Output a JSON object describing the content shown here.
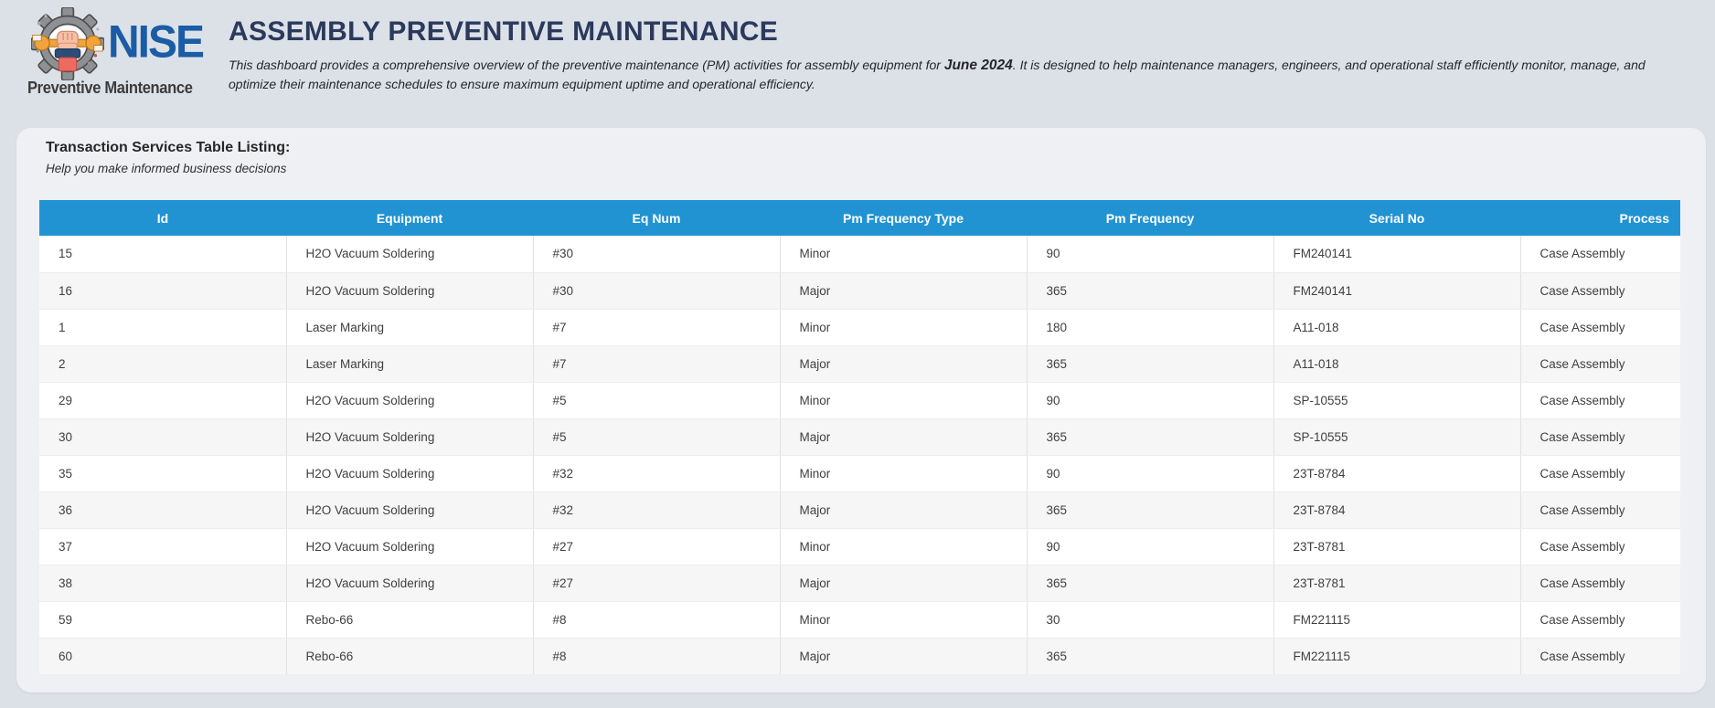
{
  "logo": {
    "name": "NISE",
    "tagline": "Preventive Maintenance"
  },
  "header": {
    "title": "ASSEMBLY PREVENTIVE MAINTENANCE",
    "description_part1": "This dashboard provides a comprehensive overview of the preventive maintenance (PM) activities for assembly equipment for ",
    "description_highlight": "June 2024",
    "description_part2": ". It is designed to help maintenance managers, engineers, and operational staff efficiently monitor, manage, and optimize their maintenance schedules to ensure maximum equipment uptime and operational efficiency."
  },
  "panel": {
    "title": "Transaction Services Table Listing:",
    "subtitle": "Help you make informed business decisions"
  },
  "table": {
    "columns": [
      "Id",
      "Equipment",
      "Eq Num",
      "Pm Frequency Type",
      "Pm Frequency",
      "Serial No",
      "Process"
    ],
    "rows": [
      [
        "15",
        "H2O Vacuum Soldering",
        "#30",
        "Minor",
        "90",
        "FM240141",
        "Case Assembly"
      ],
      [
        "16",
        "H2O Vacuum Soldering",
        "#30",
        "Major",
        "365",
        "FM240141",
        "Case Assembly"
      ],
      [
        "1",
        "Laser Marking",
        "#7",
        "Minor",
        "180",
        "A11-018",
        "Case Assembly"
      ],
      [
        "2",
        "Laser Marking",
        "#7",
        "Major",
        "365",
        "A11-018",
        "Case Assembly"
      ],
      [
        "29",
        "H2O Vacuum Soldering",
        "#5",
        "Minor",
        "90",
        "SP-10555",
        "Case Assembly"
      ],
      [
        "30",
        "H2O Vacuum Soldering",
        "#5",
        "Major",
        "365",
        "SP-10555",
        "Case Assembly"
      ],
      [
        "35",
        "H2O Vacuum Soldering",
        "#32",
        "Minor",
        "90",
        "23T-8784",
        "Case Assembly"
      ],
      [
        "36",
        "H2O Vacuum Soldering",
        "#32",
        "Major",
        "365",
        "23T-8784",
        "Case Assembly"
      ],
      [
        "37",
        "H2O Vacuum Soldering",
        "#27",
        "Minor",
        "90",
        "23T-8781",
        "Case Assembly"
      ],
      [
        "38",
        "H2O Vacuum Soldering",
        "#27",
        "Major",
        "365",
        "23T-8781",
        "Case Assembly"
      ],
      [
        "59",
        "Rebo-66",
        "#8",
        "Minor",
        "30",
        "FM221115",
        "Case Assembly"
      ],
      [
        "60",
        "Rebo-66",
        "#8",
        "Major",
        "365",
        "FM221115",
        "Case Assembly"
      ]
    ]
  },
  "colors": {
    "page_background": "#dce1e8",
    "card_background": "#eef0f4",
    "table_header_background": "#2193d3",
    "title_text": "#2b3a5c",
    "logo_blue": "#1a5ca5"
  }
}
